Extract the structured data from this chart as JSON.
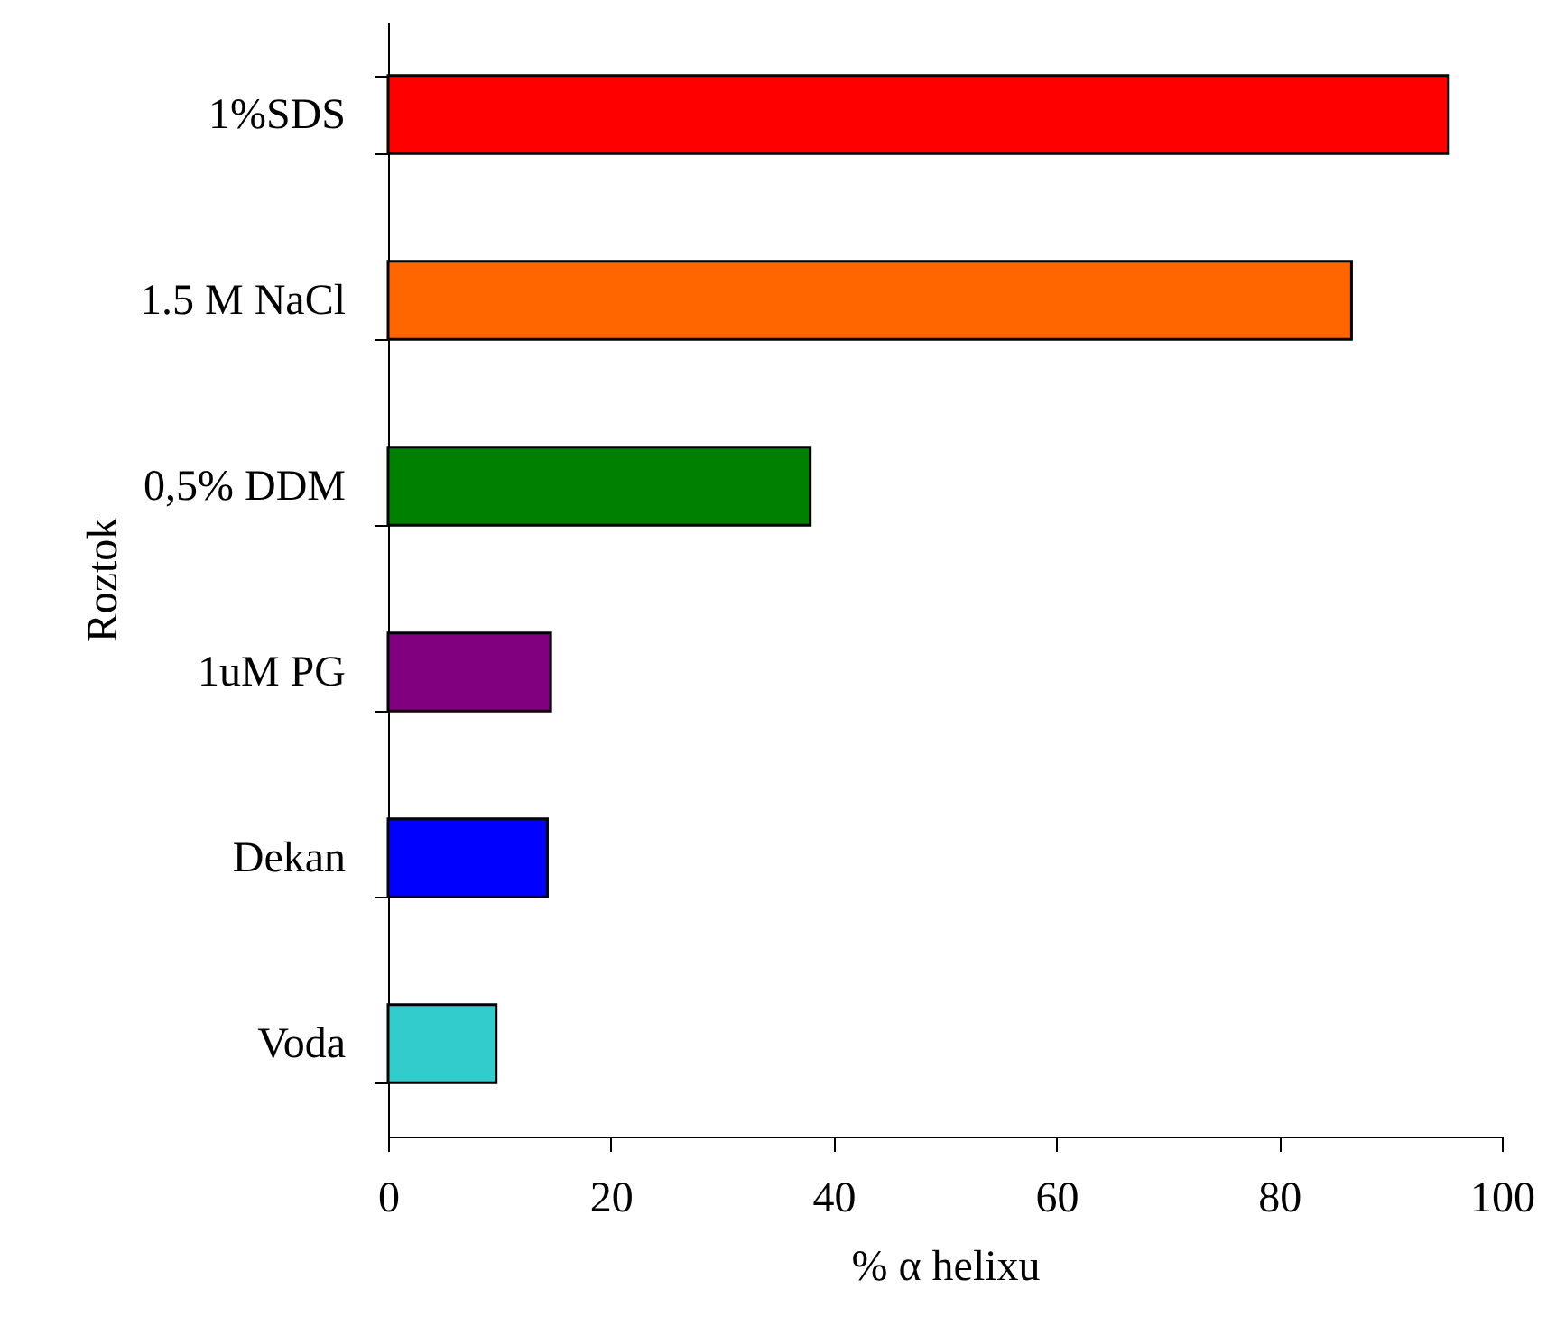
{
  "chart_data": {
    "type": "bar",
    "orientation": "horizontal",
    "xlabel": "% α helixu",
    "ylabel": "Roztok",
    "categories": [
      "1%SDS",
      "1.5 M NaCl",
      "0,5% DDM",
      "1uM PG",
      "Dekan",
      "Voda"
    ],
    "values": [
      95.2,
      86.5,
      37.9,
      14.6,
      14.3,
      9.7
    ],
    "colors": [
      "#ff0000",
      "#ff6600",
      "#008000",
      "#800080",
      "#0000ff",
      "#33cccc"
    ],
    "xlim": [
      0,
      100
    ],
    "xticks": [
      0,
      20,
      40,
      60,
      80,
      100
    ]
  }
}
